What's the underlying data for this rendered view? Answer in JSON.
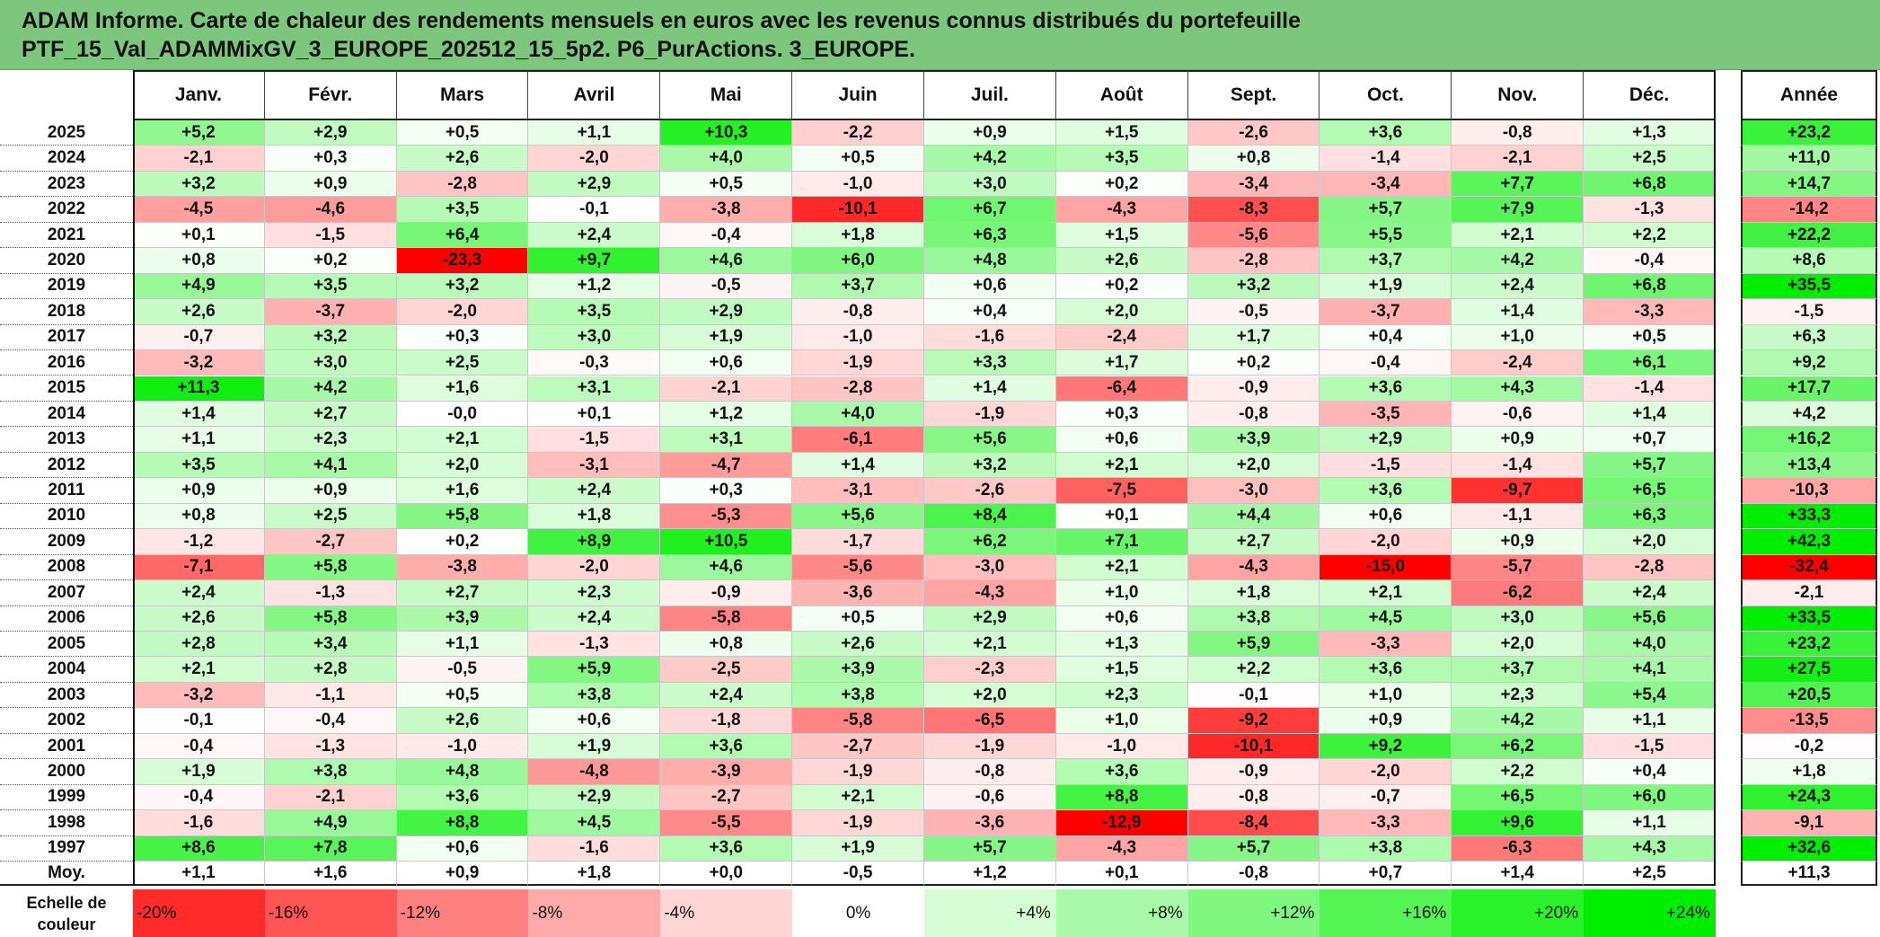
{
  "title": {
    "line1": "ADAM Informe. Carte de chaleur des rendements mensuels en euros avec les revenus connus distribués du portefeuille",
    "line2": "PTF_15_Val_ADAMMixGV_3_EUROPE_202512_15_5p2. P6_PurActions. 3_EUROPE."
  },
  "colors": {
    "title_bg": "#7dc67d",
    "neg_max": "#ff0000",
    "pos_max": "#00ee00",
    "zero": "#ffffff"
  },
  "chart_data": {
    "type": "heatmap",
    "months": [
      "Janv.",
      "Févr.",
      "Mars",
      "Avril",
      "Mai",
      "Juin",
      "Juil.",
      "Août",
      "Sept.",
      "Oct.",
      "Nov.",
      "Déc."
    ],
    "year_header": "Année",
    "rows": [
      {
        "year": "2025",
        "values": [
          "+5,2",
          "+2,9",
          "+0,5",
          "+1,1",
          "+10,3",
          "-2,2",
          "+0,9",
          "+1,5",
          "-2,6",
          "+3,6",
          "-0,8",
          "+1,3"
        ],
        "annual": "+23,2"
      },
      {
        "year": "2024",
        "values": [
          "-2,1",
          "+0,3",
          "+2,6",
          "-2,0",
          "+4,0",
          "+0,5",
          "+4,2",
          "+3,5",
          "+0,8",
          "-1,4",
          "-2,1",
          "+2,5"
        ],
        "annual": "+11,0"
      },
      {
        "year": "2023",
        "values": [
          "+3,2",
          "+0,9",
          "-2,8",
          "+2,9",
          "+0,5",
          "-1,0",
          "+3,0",
          "+0,2",
          "-3,4",
          "-3,4",
          "+7,7",
          "+6,8"
        ],
        "annual": "+14,7"
      },
      {
        "year": "2022",
        "values": [
          "-4,5",
          "-4,6",
          "+3,5",
          "-0,1",
          "-3,8",
          "-10,1",
          "+6,7",
          "-4,3",
          "-8,3",
          "+5,7",
          "+7,9",
          "-1,3"
        ],
        "annual": "-14,2"
      },
      {
        "year": "2021",
        "values": [
          "+0,1",
          "-1,5",
          "+6,4",
          "+2,4",
          "-0,4",
          "+1,8",
          "+6,3",
          "+1,5",
          "-5,6",
          "+5,5",
          "+2,1",
          "+2,2"
        ],
        "annual": "+22,2"
      },
      {
        "year": "2020",
        "values": [
          "+0,8",
          "+0,2",
          "-23,3",
          "+9,7",
          "+4,6",
          "+6,0",
          "+4,8",
          "+2,6",
          "-2,8",
          "+3,7",
          "+4,2",
          "-0,4"
        ],
        "annual": "+8,6"
      },
      {
        "year": "2019",
        "values": [
          "+4,9",
          "+3,5",
          "+3,2",
          "+1,2",
          "-0,5",
          "+3,7",
          "+0,6",
          "+0,2",
          "+3,2",
          "+1,9",
          "+2,4",
          "+6,8"
        ],
        "annual": "+35,5"
      },
      {
        "year": "2018",
        "values": [
          "+2,6",
          "-3,7",
          "-2,0",
          "+3,5",
          "+2,9",
          "-0,8",
          "+0,4",
          "+2,0",
          "-0,5",
          "-3,7",
          "+1,4",
          "-3,3"
        ],
        "annual": "-1,5"
      },
      {
        "year": "2017",
        "values": [
          "-0,7",
          "+3,2",
          "+0,3",
          "+3,0",
          "+1,9",
          "-1,0",
          "-1,6",
          "-2,4",
          "+1,7",
          "+0,4",
          "+1,0",
          "+0,5"
        ],
        "annual": "+6,3"
      },
      {
        "year": "2016",
        "values": [
          "-3,2",
          "+3,0",
          "+2,5",
          "-0,3",
          "+0,6",
          "-1,9",
          "+3,3",
          "+1,7",
          "+0,2",
          "-0,4",
          "-2,4",
          "+6,1"
        ],
        "annual": "+9,2"
      },
      {
        "year": "2015",
        "values": [
          "+11,3",
          "+4,2",
          "+1,6",
          "+3,1",
          "-2,1",
          "-2,8",
          "+1,4",
          "-6,4",
          "-0,9",
          "+3,6",
          "+4,3",
          "-1,4"
        ],
        "annual": "+17,7"
      },
      {
        "year": "2014",
        "values": [
          "+1,4",
          "+2,7",
          "-0,0",
          "+0,1",
          "+1,2",
          "+4,0",
          "-1,9",
          "+0,3",
          "-0,8",
          "-3,5",
          "-0,6",
          "+1,4"
        ],
        "annual": "+4,2"
      },
      {
        "year": "2013",
        "values": [
          "+1,1",
          "+2,3",
          "+2,1",
          "-1,5",
          "+3,1",
          "-6,1",
          "+5,6",
          "+0,6",
          "+3,9",
          "+2,9",
          "+0,9",
          "+0,7"
        ],
        "annual": "+16,2"
      },
      {
        "year": "2012",
        "values": [
          "+3,5",
          "+4,1",
          "+2,0",
          "-3,1",
          "-4,7",
          "+1,4",
          "+3,2",
          "+2,1",
          "+2,0",
          "-1,5",
          "-1,4",
          "+5,7"
        ],
        "annual": "+13,4"
      },
      {
        "year": "2011",
        "values": [
          "+0,9",
          "+0,9",
          "+1,6",
          "+2,4",
          "+0,3",
          "-3,1",
          "-2,6",
          "-7,5",
          "-3,0",
          "+3,6",
          "-9,7",
          "+6,5"
        ],
        "annual": "-10,3"
      },
      {
        "year": "2010",
        "values": [
          "+0,8",
          "+2,5",
          "+5,8",
          "+1,8",
          "-5,3",
          "+5,6",
          "+8,4",
          "+0,1",
          "+4,4",
          "+0,6",
          "-1,1",
          "+6,3"
        ],
        "annual": "+33,3"
      },
      {
        "year": "2009",
        "values": [
          "-1,2",
          "-2,7",
          "+0,2",
          "+8,9",
          "+10,5",
          "-1,7",
          "+6,2",
          "+7,1",
          "+2,7",
          "-2,0",
          "+0,9",
          "+2,0"
        ],
        "annual": "+42,3"
      },
      {
        "year": "2008",
        "values": [
          "-7,1",
          "+5,8",
          "-3,8",
          "-2,0",
          "+4,6",
          "-5,6",
          "-3,0",
          "+2,1",
          "-4,3",
          "-15,0",
          "-5,7",
          "-2,8"
        ],
        "annual": "-32,4"
      },
      {
        "year": "2007",
        "values": [
          "+2,4",
          "-1,3",
          "+2,7",
          "+2,3",
          "-0,9",
          "-3,6",
          "-4,3",
          "+1,0",
          "+1,8",
          "+2,1",
          "-6,2",
          "+2,4"
        ],
        "annual": "-2,1"
      },
      {
        "year": "2006",
        "values": [
          "+2,6",
          "+5,8",
          "+3,9",
          "+2,4",
          "-5,8",
          "+0,5",
          "+2,9",
          "+0,6",
          "+3,8",
          "+4,5",
          "+3,0",
          "+5,6"
        ],
        "annual": "+33,5"
      },
      {
        "year": "2005",
        "values": [
          "+2,8",
          "+3,4",
          "+1,1",
          "-1,3",
          "+0,8",
          "+2,6",
          "+2,1",
          "+1,3",
          "+5,9",
          "-3,3",
          "+2,0",
          "+4,0"
        ],
        "annual": "+23,2"
      },
      {
        "year": "2004",
        "values": [
          "+2,1",
          "+2,8",
          "-0,5",
          "+5,9",
          "-2,5",
          "+3,9",
          "-2,3",
          "+1,5",
          "+2,2",
          "+3,6",
          "+3,7",
          "+4,1"
        ],
        "annual": "+27,5"
      },
      {
        "year": "2003",
        "values": [
          "-3,2",
          "-1,1",
          "+0,5",
          "+3,8",
          "+2,4",
          "+3,8",
          "+2,0",
          "+2,3",
          "-0,1",
          "+1,0",
          "+2,3",
          "+5,4"
        ],
        "annual": "+20,5"
      },
      {
        "year": "2002",
        "values": [
          "-0,1",
          "-0,4",
          "+2,6",
          "+0,6",
          "-1,8",
          "-5,8",
          "-6,5",
          "+1,0",
          "-9,2",
          "+0,9",
          "+4,2",
          "+1,1"
        ],
        "annual": "-13,5"
      },
      {
        "year": "2001",
        "values": [
          "-0,4",
          "-1,3",
          "-1,0",
          "+1,9",
          "+3,6",
          "-2,7",
          "-1,9",
          "-1,0",
          "-10,1",
          "+9,2",
          "+6,2",
          "-1,5"
        ],
        "annual": "-0,2"
      },
      {
        "year": "2000",
        "values": [
          "+1,9",
          "+3,8",
          "+4,8",
          "-4,8",
          "-3,9",
          "-1,9",
          "-0,8",
          "+3,6",
          "-0,9",
          "-2,0",
          "+2,2",
          "+0,4"
        ],
        "annual": "+1,8"
      },
      {
        "year": "1999",
        "values": [
          "-0,4",
          "-2,1",
          "+3,6",
          "+2,9",
          "-2,7",
          "+2,1",
          "-0,6",
          "+8,8",
          "-0,8",
          "-0,7",
          "+6,5",
          "+6,0"
        ],
        "annual": "+24,3"
      },
      {
        "year": "1998",
        "values": [
          "-1,6",
          "+4,9",
          "+8,8",
          "+4,5",
          "-5,5",
          "-1,9",
          "-3,6",
          "-12,9",
          "-8,4",
          "-3,3",
          "+9,6",
          "+1,1"
        ],
        "annual": "-9,1"
      },
      {
        "year": "1997",
        "values": [
          "+8,6",
          "+7,8",
          "+0,6",
          "-1,6",
          "+3,6",
          "+1,9",
          "+5,7",
          "-4,3",
          "+5,7",
          "+3,8",
          "-6,3",
          "+4,3"
        ],
        "annual": "+32,6"
      }
    ],
    "average": {
      "label": "Moy.",
      "values": [
        "+1,1",
        "+1,6",
        "+0,9",
        "+1,8",
        "+0,0",
        "-0,5",
        "+1,2",
        "+0,1",
        "-0,8",
        "+0,7",
        "+1,4",
        "+2,5"
      ],
      "annual": "+11,3"
    },
    "color_scale": {
      "label_line1": "Echelle de",
      "label_line2": "couleur",
      "steps": [
        "-20%",
        "-16%",
        "-12%",
        "-8%",
        "-4%",
        "0%",
        "+4%",
        "+8%",
        "+12%",
        "+16%",
        "+20%",
        "+24%"
      ]
    }
  }
}
